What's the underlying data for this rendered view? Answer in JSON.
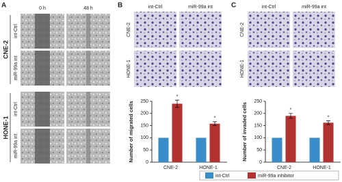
{
  "figure": {
    "panels": [
      {
        "label": "A",
        "columns": [
          "0 h",
          "48 h"
        ],
        "groups": [
          {
            "name": "CNE-2",
            "rows": [
              "int-Ctrl",
              "miR-99a int"
            ]
          },
          {
            "name": "HONE-1",
            "rows": [
              "int-Ctrl",
              "miR-99a int"
            ]
          }
        ]
      },
      {
        "label": "B",
        "columns": [
          "int-Ctrl",
          "miR-99a int"
        ],
        "rows": [
          "CNE-2",
          "HONE-1"
        ]
      },
      {
        "label": "C",
        "columns": [
          "int-Ctrl",
          "miR-99a int"
        ],
        "rows": [
          "CNE-2",
          "HONE-1"
        ]
      }
    ]
  },
  "chart_data": [
    {
      "type": "bar",
      "ylabel": "Number of migrated cells",
      "categories": [
        "CNE-2",
        "HONE-1"
      ],
      "series": [
        {
          "name": "int-Ctrl",
          "color": "#3a8dc9",
          "values": [
            100,
            100
          ]
        },
        {
          "name": "miR-99a inhibitor",
          "color": "#b2322f",
          "values": [
            240,
            158
          ],
          "errors": [
            15,
            8
          ],
          "annotations": [
            "*",
            "*"
          ]
        }
      ],
      "ylim": [
        0,
        250
      ],
      "yticks": [
        0,
        50,
        100,
        150,
        200,
        250
      ]
    },
    {
      "type": "bar",
      "ylabel": "Number of invaded cells",
      "categories": [
        "CNE-2",
        "HONE-1"
      ],
      "series": [
        {
          "name": "int-Ctrl",
          "color": "#3a8dc9",
          "values": [
            100,
            100
          ]
        },
        {
          "name": "miR-99a inhibitor",
          "color": "#b2322f",
          "values": [
            190,
            162
          ],
          "errors": [
            10,
            8
          ],
          "annotations": [
            "*",
            "*"
          ]
        }
      ],
      "ylim": [
        0,
        250
      ],
      "yticks": [
        0,
        50,
        100,
        150,
        200,
        250
      ]
    }
  ],
  "legend_position": "bottom"
}
